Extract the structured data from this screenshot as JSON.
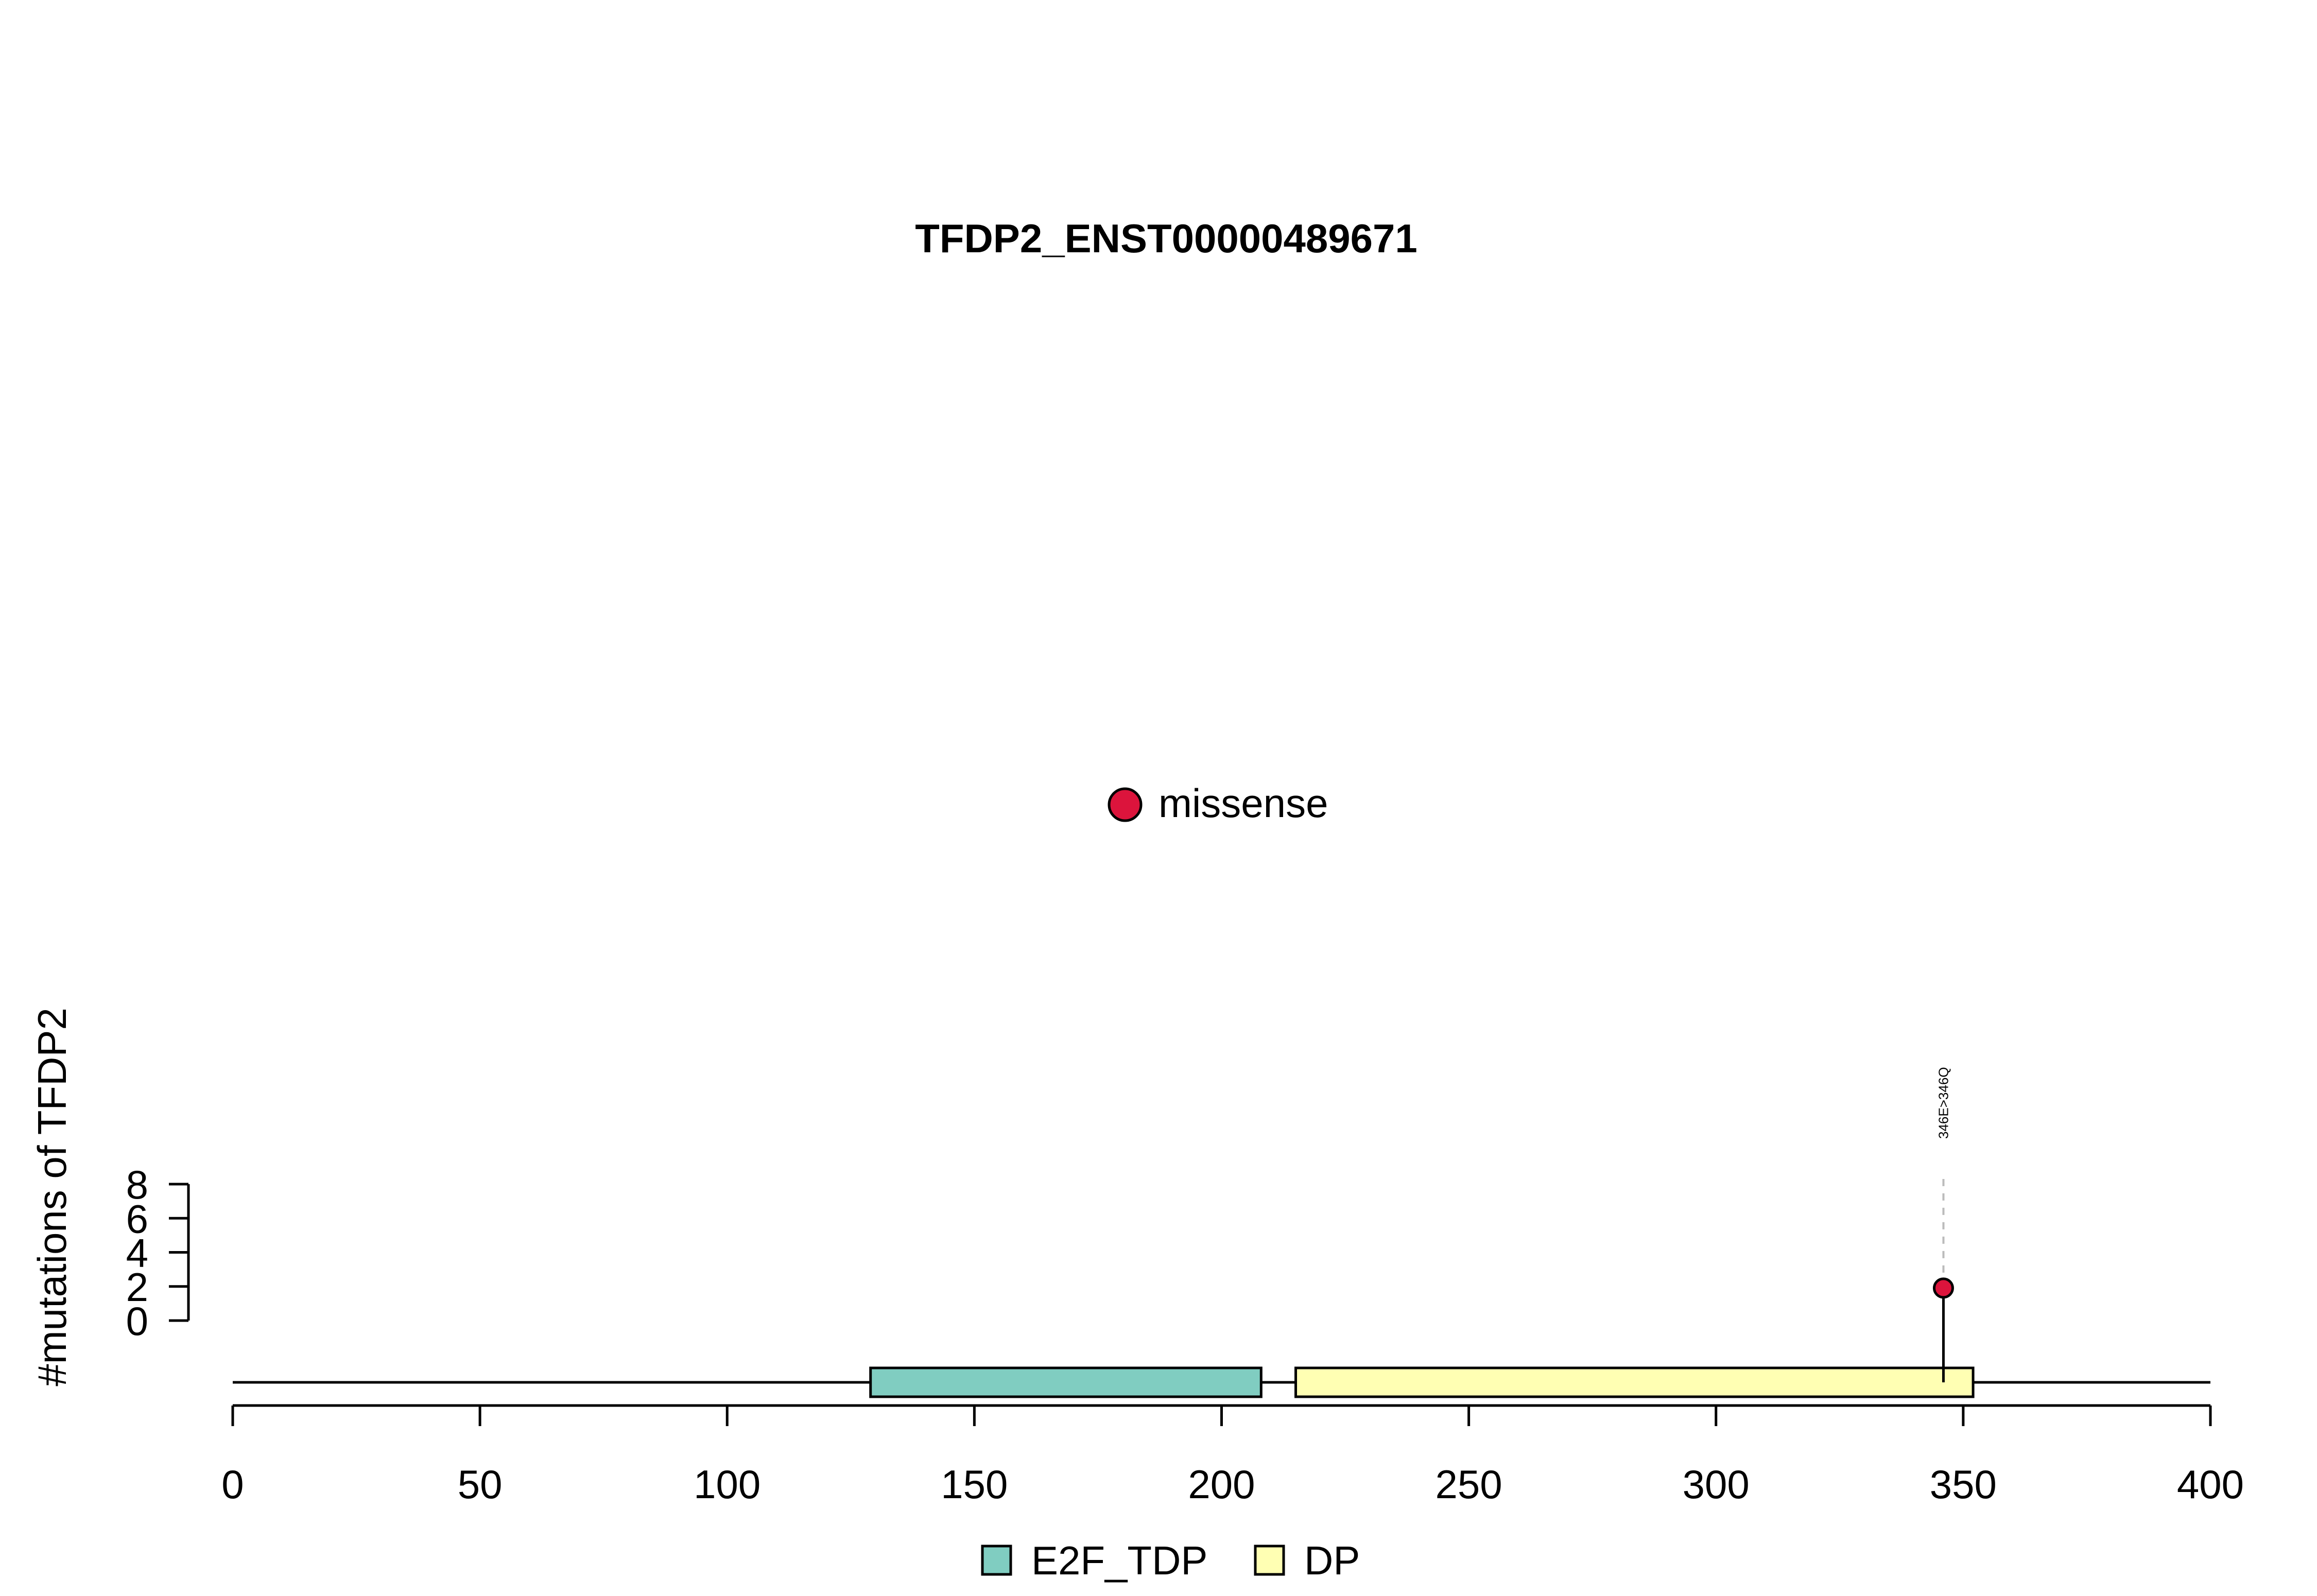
{
  "chart_data": {
    "type": "lollipop",
    "title": "TFDP2_ENST00000489671",
    "ylabel": "#mutations of TFDP2",
    "xlim": [
      0,
      400
    ],
    "x_ticks": [
      0,
      50,
      100,
      150,
      200,
      250,
      300,
      350,
      400
    ],
    "ylim": [
      0,
      8
    ],
    "y_ticks": [
      0,
      2,
      4,
      6,
      8
    ],
    "protein_length": 400,
    "domains": [
      {
        "name": "E2F_TDP",
        "start": 129,
        "end": 208,
        "color": "#80CDC1"
      },
      {
        "name": "DP",
        "start": 215,
        "end": 352,
        "color": "#FFFFB3"
      }
    ],
    "mutations": [
      {
        "position": 346,
        "count": 1,
        "label": "346E>346Q",
        "type": "missense"
      }
    ],
    "mutation_legend": [
      {
        "type": "missense",
        "label": "missense",
        "color": "#DC143C"
      }
    ],
    "domain_legend": [
      {
        "label": "E2F_TDP",
        "color": "#80CDC1"
      },
      {
        "label": "DP",
        "color": "#FFFFB3"
      }
    ]
  }
}
